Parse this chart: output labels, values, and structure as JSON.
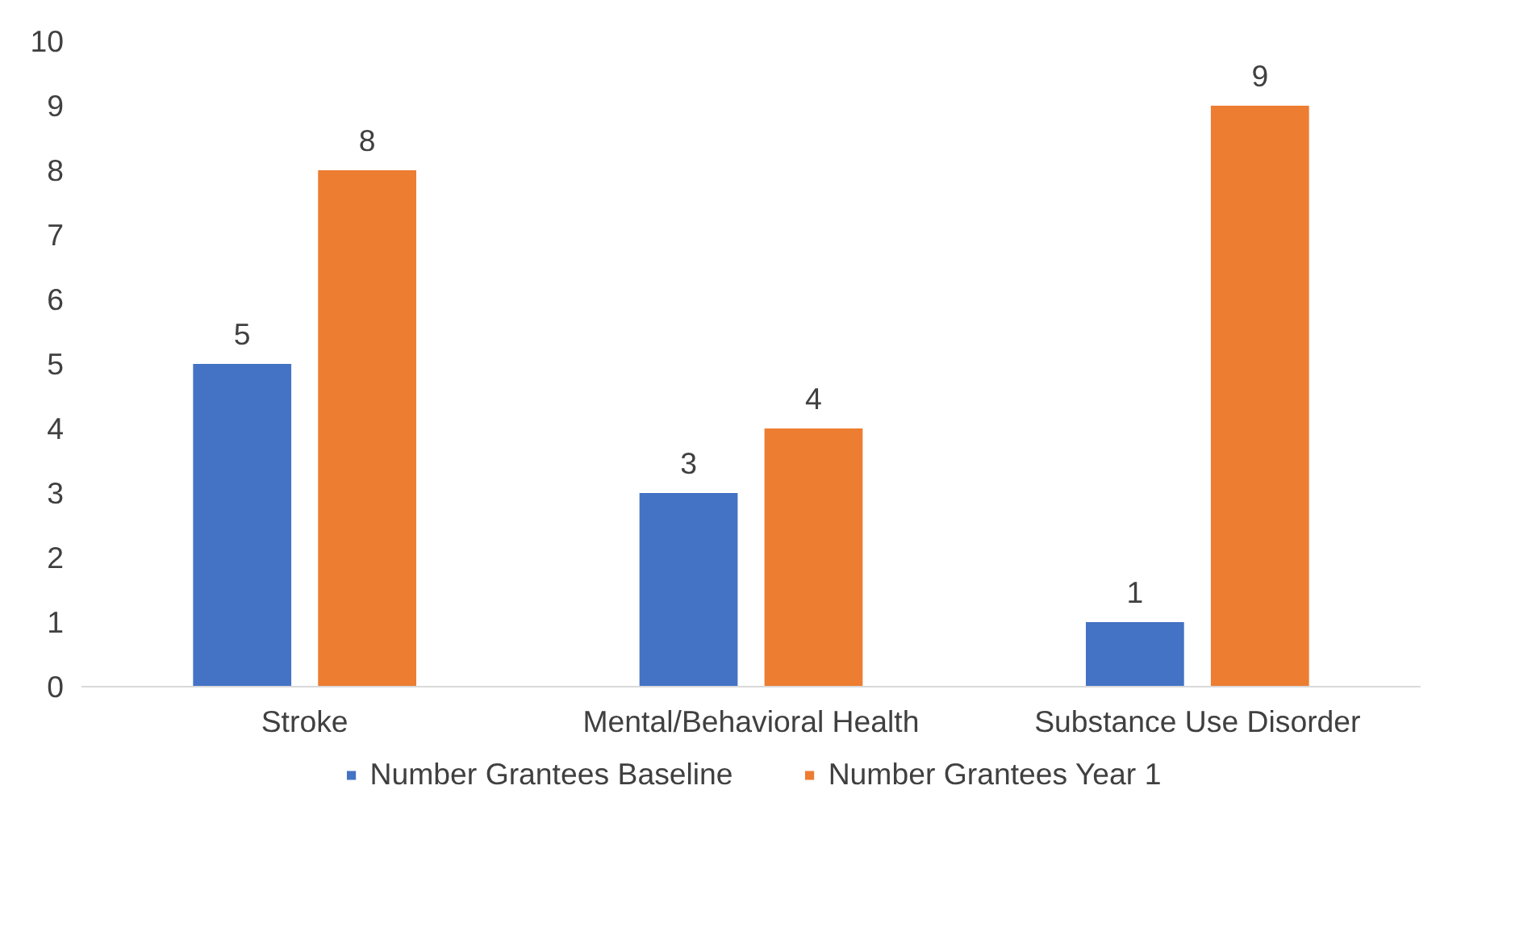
{
  "chart_data": {
    "type": "bar",
    "categories": [
      "Stroke",
      "Mental/Behavioral Health",
      "Substance Use Disorder"
    ],
    "series": [
      {
        "name": "Number Grantees Baseline",
        "color": "#4472c4",
        "values": [
          5,
          3,
          1
        ]
      },
      {
        "name": "Number Grantees Year 1",
        "color": "#ed7d31",
        "values": [
          8,
          4,
          9
        ]
      }
    ],
    "ylim": [
      0,
      10
    ],
    "yticks": [
      0,
      1,
      2,
      3,
      4,
      5,
      6,
      7,
      8,
      9,
      10
    ],
    "grid": false,
    "legend": "bottom",
    "data_labels": true
  }
}
